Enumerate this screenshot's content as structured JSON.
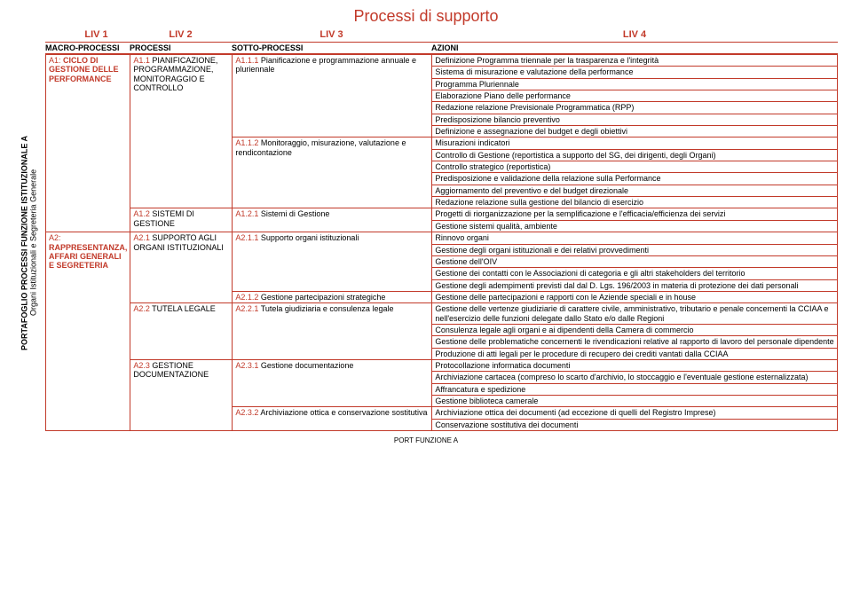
{
  "title": "Processi di supporto",
  "levels": {
    "l1": "LIV 1",
    "l2": "LIV 2",
    "l3": "LIV 3",
    "l4": "LIV 4"
  },
  "headers": {
    "mp": "MACRO-PROCESSI",
    "p": "PROCESSI",
    "sp": "SOTTO-PROCESSI",
    "az": "AZIONI"
  },
  "sidebar": {
    "line1": "PORTAFOGLIO PROCESSI FUNZIONE ISTITUZIONALE A",
    "line2": "Organi Istituzionali e Segreteria Generale"
  },
  "footer": "PORT FUNZIONE A",
  "mp": {
    "a1": {
      "code": "A1:",
      "text": " CICLO DI GESTIONE DELLE PERFORMANCE"
    },
    "a2": {
      "code": "A2:",
      "text": " RAPPRESENTANZA, AFFARI GENERALI E SEGRETERIA"
    }
  },
  "p": {
    "a11": {
      "code": "A1.1",
      "text": " PIANIFICAZIONE, PROGRAMMAZIONE, MONITORAGGIO E CONTROLLO"
    },
    "a12": {
      "code": "A1.2",
      "text": " SISTEMI DI GESTIONE"
    },
    "a21": {
      "code": "A2.1",
      "text": " SUPPORTO AGLI ORGANI ISTITUZIONALI"
    },
    "a22": {
      "code": "A2.2",
      "text": " TUTELA LEGALE"
    },
    "a23": {
      "code": "A2.3",
      "text": " GESTIONE DOCUMENTAZIONE"
    }
  },
  "sp": {
    "a111": {
      "code": "A1.1.1",
      "text": " Pianificazione e programmazione annuale e pluriennale"
    },
    "a112": {
      "code": "A1.1.2",
      "text": " Monitoraggio, misurazione, valutazione e rendicontazione"
    },
    "a121": {
      "code": "A1.2.1",
      "text": " Sistemi di Gestione"
    },
    "a211": {
      "code": "A2.1.1",
      "text": " Supporto organi istituzionali"
    },
    "a212": {
      "code": "A2.1.2",
      "text": " Gestione partecipazioni strategiche"
    },
    "a221": {
      "code": "A2.2.1",
      "text": " Tutela giudiziaria e consulenza legale"
    },
    "a231": {
      "code": "A2.3.1",
      "text": " Gestione documentazione"
    },
    "a232": {
      "code": "A2.3.2",
      "text": " Archiviazione ottica e conservazione sostitutiva"
    }
  },
  "az": {
    "r1": "Definizione Programma triennale per la trasparenza e l'integrità",
    "r2": "Sistema di misurazione e valutazione della performance",
    "r3": "Programma Pluriennale",
    "r4": "Elaborazione Piano delle performance",
    "r5": "Redazione relazione Previsionale Programmatica (RPP)",
    "r6": "Predisposizione bilancio preventivo",
    "r7": "Definizione e assegnazione del budget e degli obiettivi",
    "r8": "Misurazioni indicatori",
    "r9": "Controllo di Gestione (reportistica a supporto del SG, dei dirigenti, degli Organi)",
    "r10": "Controllo strategico (reportistica)",
    "r11": "Predisposizione e validazione della relazione sulla Performance",
    "r12": "Aggiornamento del preventivo e del budget direzionale",
    "r13": "Redazione relazione sulla gestione del bilancio di esercizio",
    "r14": "Progetti di riorganizzazione per la semplificazione e l'efficacia/efficienza dei servizi",
    "r15": "Gestione sistemi qualità, ambiente",
    "r16": "Rinnovo organi",
    "r17": "Gestione degli organi istituzionali e dei relativi provvedimenti",
    "r18": "Gestione dell'OIV",
    "r19": "Gestione dei contatti con le Associazioni di categoria e gli altri stakeholders del territorio",
    "r20": "Gestione degli adempimenti previsti dal dal D. Lgs. 196/2003 in materia di protezione dei dati personali",
    "r21": "Gestione delle partecipazioni e rapporti con le Aziende speciali e in house",
    "r22": "Gestione delle vertenze giudiziarie di carattere civile, amministrativo, tributario e penale concernenti la CCIAA e nell'esercizio delle funzioni delegate dallo Stato e/o dalle Regioni",
    "r23": "Consulenza legale agli organi e ai dipendenti della Camera di commercio",
    "r24": "Gestione delle problematiche concernenti le rivendicazioni relative al rapporto di lavoro del personale dipendente",
    "r25": "Produzione di atti legali per le procedure di recupero dei crediti vantati dalla CCIAA",
    "r26": "Protocollazione informatica documenti",
    "r27": "Archiviazione cartacea (compreso lo scarto d'archivio, lo stoccaggio e l'eventuale gestione esternalizzata)",
    "r28": "Affrancatura e spedizione",
    "r29": "Gestione biblioteca camerale",
    "r30": "Archiviazione ottica dei documenti (ad eccezione di quelli del Registro Imprese)",
    "r31": "Conservazione sostitutiva dei documenti"
  }
}
